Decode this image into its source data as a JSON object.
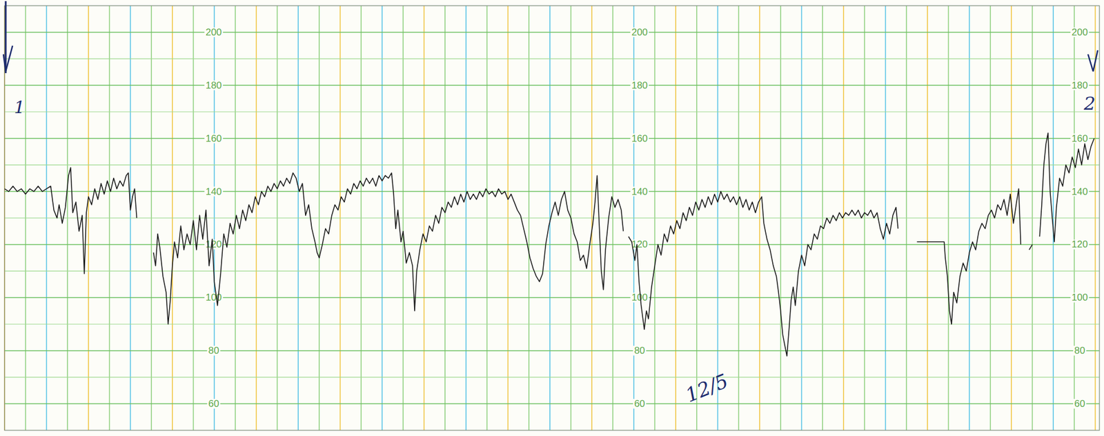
{
  "chart_data": {
    "type": "line",
    "annotations": [
      "1",
      "2",
      "12/5"
    ],
    "color": "#1b1b1b",
    "grid": true,
    "tick_labels": "y",
    "xlim": [
      0,
      52.2
    ],
    "ylim": [
      50,
      210
    ],
    "xticks": [
      0,
      1,
      2,
      3,
      4,
      5,
      6,
      7,
      8,
      9,
      10,
      11,
      12,
      13,
      14,
      15,
      16,
      17,
      18,
      19,
      20,
      21,
      22,
      23,
      24,
      25,
      26,
      27,
      28,
      29,
      30,
      31,
      32,
      33,
      34,
      35,
      36,
      37,
      38,
      39,
      40,
      41,
      42,
      43,
      44,
      45,
      46,
      47,
      48,
      49,
      50,
      51,
      52
    ],
    "yticks": [
      60,
      80,
      100,
      120,
      140,
      160,
      180,
      200
    ],
    "x": [
      0,
      0.2,
      0.4,
      0.6,
      0.8,
      1,
      1.2,
      1.4,
      1.6,
      1.8,
      2,
      2.2,
      2.35,
      2.5,
      2.6,
      2.75,
      2.9,
      3.05,
      3.15,
      3.25,
      3.4,
      3.55,
      3.7,
      3.8,
      3.9,
      4,
      4.15,
      4.3,
      4.45,
      4.6,
      4.75,
      4.9,
      5.05,
      5.2,
      5.35,
      5.5,
      5.65,
      5.8,
      5.9,
      6,
      6.1,
      6.2,
      6.3,
      6.35,
      7.1,
      7.2,
      7.3,
      7.4,
      7.55,
      7.7,
      7.8,
      7.9,
      8,
      8.1,
      8.25,
      8.4,
      8.55,
      8.7,
      8.85,
      9,
      9.15,
      9.3,
      9.45,
      9.6,
      9.75,
      9.9,
      10,
      10.15,
      10.3,
      10.45,
      10.6,
      10.75,
      10.9,
      11.05,
      11.2,
      11.35,
      11.5,
      11.65,
      11.8,
      11.95,
      12.1,
      12.25,
      12.4,
      12.55,
      12.7,
      12.85,
      13,
      13.15,
      13.3,
      13.45,
      13.6,
      13.75,
      13.9,
      14.05,
      14.2,
      14.35,
      14.5,
      14.65,
      14.8,
      14.9,
      15,
      15.15,
      15.3,
      15.45,
      15.6,
      15.75,
      15.9,
      16.05,
      16.2,
      16.35,
      16.5,
      16.65,
      16.8,
      16.95,
      17.1,
      17.25,
      17.4,
      17.55,
      17.7,
      17.85,
      18,
      18.15,
      18.3,
      18.45,
      18.55,
      18.65,
      18.75,
      18.9,
      19,
      19.15,
      19.3,
      19.45,
      19.55,
      19.65,
      19.8,
      19.95,
      20.1,
      20.25,
      20.4,
      20.55,
      20.7,
      20.85,
      21,
      21.15,
      21.3,
      21.45,
      21.6,
      21.75,
      21.9,
      22.05,
      22.2,
      22.35,
      22.5,
      22.65,
      22.8,
      22.95,
      23.1,
      23.25,
      23.4,
      23.55,
      23.7,
      23.85,
      24,
      24.15,
      24.3,
      24.45,
      24.6,
      24.75,
      24.9,
      25.05,
      25.2,
      25.35,
      25.5,
      25.65,
      25.8,
      25.95,
      26.1,
      26.25,
      26.4,
      26.55,
      26.7,
      26.85,
      27,
      27.15,
      27.3,
      27.45,
      27.6,
      27.75,
      27.9,
      28.05,
      28.15,
      28.25,
      28.35,
      28.45,
      28.55,
      28.65,
      28.8,
      28.95,
      29.1,
      29.25,
      29.4,
      29.5,
      29.55,
      29.75,
      29.9,
      30.05,
      30.15,
      30.25,
      30.35,
      30.5,
      30.6,
      30.7,
      30.85,
      31,
      31.15,
      31.3,
      31.45,
      31.6,
      31.75,
      31.9,
      32.05,
      32.2,
      32.35,
      32.5,
      32.65,
      32.8,
      32.95,
      33.1,
      33.25,
      33.4,
      33.55,
      33.7,
      33.85,
      34,
      34.15,
      34.3,
      34.45,
      34.6,
      34.75,
      34.9,
      35.05,
      35.2,
      35.35,
      35.5,
      35.65,
      35.8,
      35.95,
      36.1,
      36.2,
      36.35,
      36.5,
      36.65,
      36.8,
      36.9,
      37,
      37.1,
      37.2,
      37.3,
      37.4,
      37.5,
      37.6,
      37.7,
      37.85,
      38,
      38.15,
      38.3,
      38.45,
      38.6,
      38.75,
      38.9,
      39.05,
      39.2,
      39.35,
      39.5,
      39.65,
      39.8,
      39.95,
      40.1,
      40.25,
      40.4,
      40.55,
      40.7,
      40.85,
      41,
      41.15,
      41.3,
      41.45,
      41.6,
      41.75,
      41.9,
      42.05,
      42.2,
      42.35,
      42.5,
      42.6,
      42.7,
      43.5,
      43.7,
      44.8,
      44.85,
      44.95,
      45.05,
      45.15,
      45.25,
      45.4,
      45.55,
      45.7,
      45.85,
      46,
      46.15,
      46.3,
      46.45,
      46.6,
      46.75,
      46.9,
      47.05,
      47.2,
      47.35,
      47.5,
      47.65,
      47.8,
      47.95,
      48.1,
      48.25,
      48.35,
      48.45,
      48.55,
      48.85,
      49,
      49.1,
      49.35,
      49.45,
      49.55,
      49.65,
      49.75,
      49.85,
      49.95,
      50.05,
      50.15,
      50.3,
      50.45,
      50.6,
      50.75,
      50.9,
      51.05,
      51.2,
      51.35,
      51.5,
      51.65,
      51.8,
      51.95
    ],
    "values": [
      141,
      140,
      142,
      140,
      141,
      139,
      141,
      140,
      142,
      140,
      141,
      142,
      133,
      130,
      135,
      128,
      134,
      146,
      149,
      132,
      136,
      125,
      131,
      109,
      132,
      138,
      135,
      141,
      137,
      143,
      139,
      144,
      140,
      145,
      141,
      144,
      142,
      146,
      147,
      133,
      138,
      141,
      130,
      null,
      117,
      112,
      124,
      119,
      108,
      102,
      90,
      99,
      112,
      121,
      115,
      127,
      118,
      124,
      120,
      129,
      118,
      131,
      122,
      133,
      112,
      122,
      106,
      97,
      109,
      124,
      119,
      128,
      124,
      131,
      126,
      133,
      129,
      135,
      132,
      138,
      135,
      140,
      138,
      142,
      140,
      143,
      141,
      144,
      142,
      145,
      143,
      147,
      145,
      140,
      143,
      131,
      135,
      126,
      121,
      117,
      115,
      120,
      126,
      124,
      131,
      135,
      133,
      138,
      136,
      141,
      139,
      143,
      141,
      144,
      142,
      145,
      143,
      145,
      142,
      146,
      144,
      146,
      145,
      147,
      139,
      126,
      133,
      121,
      125,
      113,
      117,
      112,
      95,
      110,
      118,
      124,
      121,
      127,
      125,
      131,
      128,
      134,
      132,
      136,
      134,
      138,
      135,
      139,
      136,
      140,
      137,
      139,
      137,
      140,
      138,
      141,
      139,
      140,
      138,
      141,
      139,
      140,
      137,
      139,
      136,
      133,
      131,
      126,
      121,
      115,
      111,
      108,
      106,
      109,
      120,
      127,
      132,
      136,
      131,
      137,
      140,
      133,
      130,
      124,
      121,
      114,
      116,
      111,
      120,
      128,
      136,
      146,
      128,
      110,
      103,
      118,
      130,
      138,
      134,
      137,
      133,
      125,
      null,
      123,
      121,
      114,
      120,
      106,
      97,
      88,
      95,
      92,
      104,
      112,
      120,
      116,
      124,
      121,
      127,
      124,
      129,
      126,
      132,
      129,
      134,
      131,
      136,
      133,
      137,
      134,
      138,
      135,
      139,
      136,
      140,
      137,
      139,
      136,
      138,
      135,
      138,
      134,
      137,
      133,
      136,
      132,
      136,
      138,
      128,
      122,
      118,
      112,
      108,
      102,
      95,
      86,
      82,
      78,
      88,
      99,
      104,
      97,
      110,
      116,
      112,
      120,
      118,
      124,
      122,
      127,
      126,
      130,
      128,
      131,
      129,
      132,
      130,
      132,
      131,
      133,
      131,
      133,
      130,
      132,
      131,
      133,
      130,
      132,
      126,
      122,
      128,
      124,
      131,
      134,
      126,
      null,
      121,
      121,
      121,
      115,
      108,
      95,
      90,
      102,
      98,
      108,
      113,
      110,
      117,
      121,
      118,
      125,
      128,
      126,
      131,
      133,
      130,
      135,
      133,
      137,
      131,
      139,
      128,
      136,
      141,
      120,
      null,
      118,
      120,
      null,
      123,
      135,
      150,
      158,
      162,
      140,
      130,
      121,
      134,
      145,
      142,
      150,
      147,
      153,
      149,
      156,
      150,
      158,
      152,
      157,
      160
    ]
  }
}
